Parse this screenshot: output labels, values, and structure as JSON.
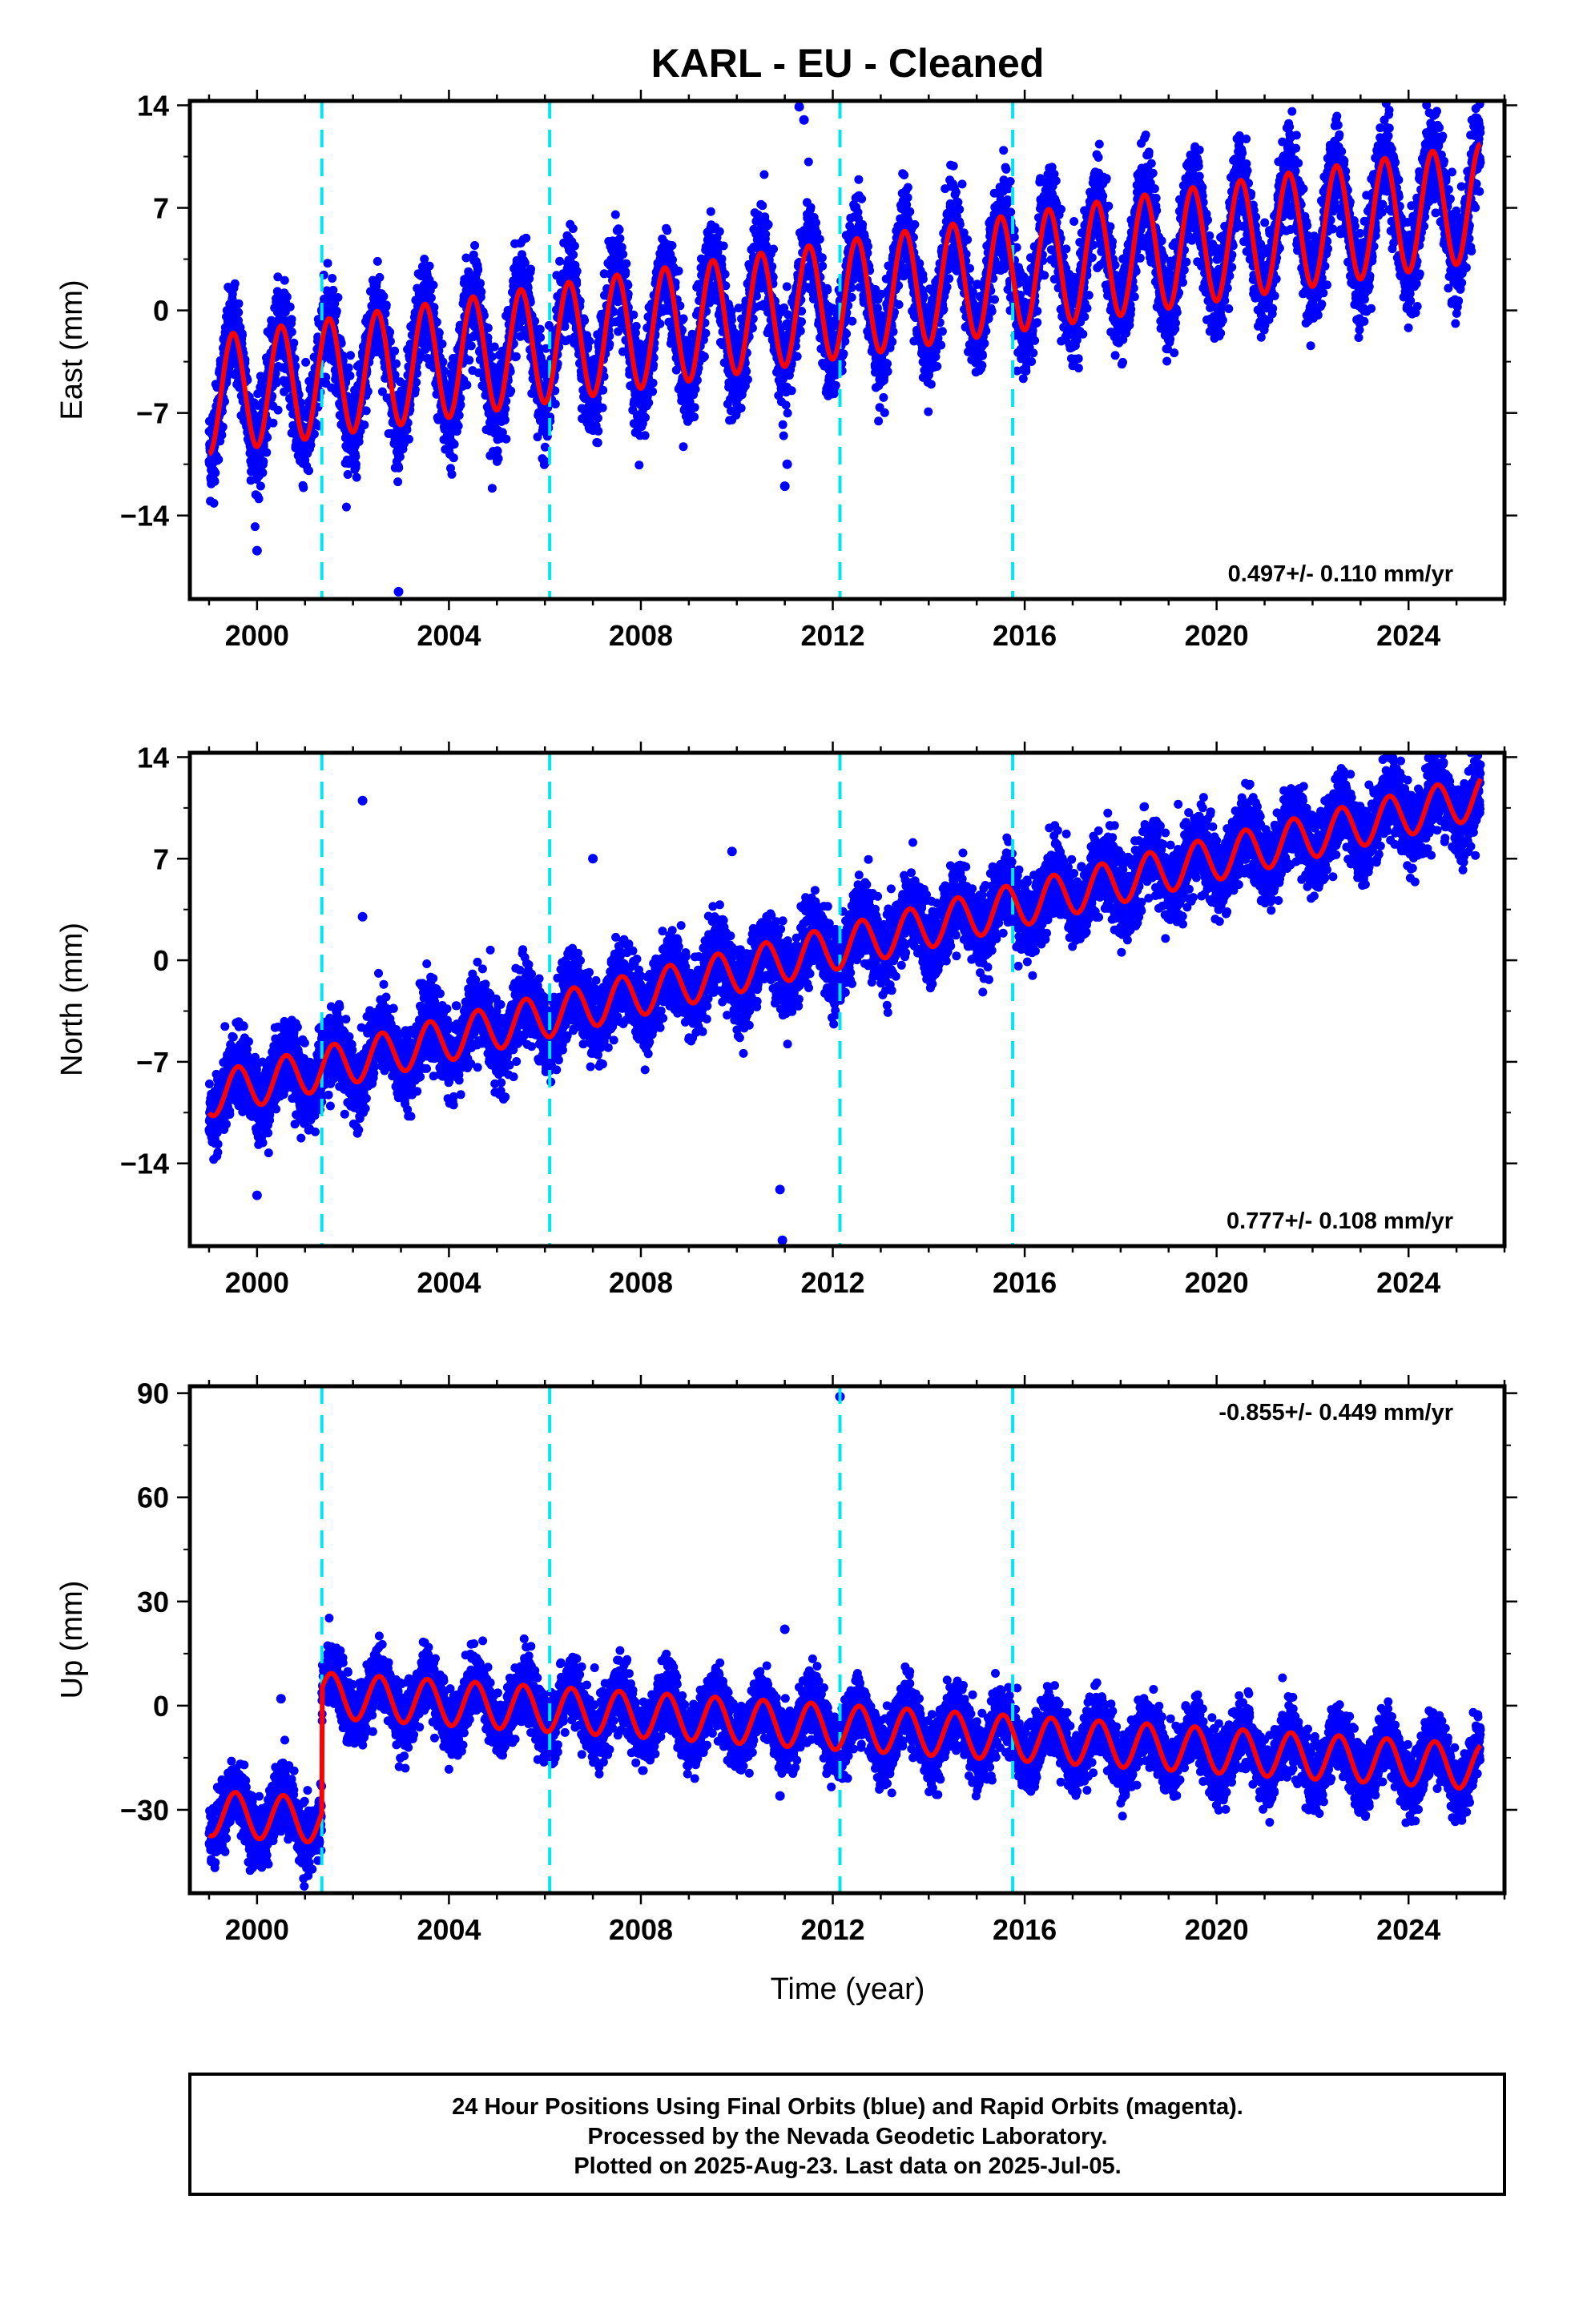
{
  "title": "KARL  - EU - Cleaned",
  "xlabel": "Time (year)",
  "footer": [
    "24 Hour Positions Using Final Orbits (blue) and Rapid Orbits (magenta).",
    "Processed by the Nevada Geodetic Laboratory.",
    "Plotted on 2025-Aug-23. Last data on 2025-Jul-05."
  ],
  "colors": {
    "points": "#0000ff",
    "model": "#ff0000",
    "breaks": "#00e5ee",
    "frame": "#000000"
  },
  "chart_data": [
    {
      "type": "scatter",
      "component": "East",
      "ylabel": "East (mm)",
      "rate_text": "0.497+/- 0.110 mm/yr",
      "xlim": [
        1998.6,
        2026.0
      ],
      "ylim": [
        -19.7,
        14.3
      ],
      "xticks": [
        2000,
        2004,
        2008,
        2012,
        2016,
        2020,
        2024
      ],
      "yticks": [
        14,
        7,
        0,
        -7,
        -14
      ],
      "breaks": [
        2001.35,
        2006.1,
        2012.15,
        2015.75
      ],
      "model": {
        "start": 1999.0,
        "end": 2025.5,
        "offset_at_start": -5.8,
        "rate": 0.497,
        "annual_amplitude": 4.0,
        "annual_peak_fraction": 0.5,
        "scatter_sigma": 1.6,
        "steps": [
          [
            2001.35,
            0
          ],
          [
            2006.1,
            0
          ],
          [
            2012.15,
            0
          ],
          [
            2015.75,
            0
          ]
        ]
      },
      "outliers": [
        [
          2002.95,
          -19.2
        ],
        [
          2000.0,
          -16.4
        ],
        [
          2011.0,
          -12.0
        ],
        [
          2011.05,
          -10.5
        ],
        [
          2005.0,
          -10.0
        ],
        [
          2011.3,
          13.9
        ],
        [
          2011.4,
          13.0
        ]
      ]
    },
    {
      "type": "scatter",
      "component": "North",
      "ylabel": "North (mm)",
      "rate_text": "0.777+/- 0.108 mm/yr",
      "xlim": [
        1998.6,
        2026.0
      ],
      "ylim": [
        -19.7,
        14.3
      ],
      "xticks": [
        2000,
        2004,
        2008,
        2012,
        2016,
        2020,
        2024
      ],
      "yticks": [
        14,
        7,
        0,
        -7,
        -14
      ],
      "breaks": [
        2001.35,
        2006.1,
        2012.15,
        2015.75
      ],
      "model": {
        "start": 1999.0,
        "end": 2025.5,
        "offset_at_start": -9.3,
        "rate": 0.777,
        "annual_amplitude": 1.5,
        "annual_peak_fraction": 0.6,
        "scatter_sigma": 1.3,
        "steps": [
          [
            2001.35,
            0
          ],
          [
            2006.1,
            0
          ],
          [
            2012.15,
            0
          ],
          [
            2015.75,
            0
          ]
        ]
      },
      "outliers": [
        [
          2002.2,
          11.0
        ],
        [
          2002.2,
          3.0
        ],
        [
          2000.0,
          -16.2
        ],
        [
          2010.9,
          -15.8
        ],
        [
          2010.95,
          -19.3
        ],
        [
          2023.7,
          14.5
        ],
        [
          2009.9,
          7.5
        ],
        [
          2007.0,
          7.0
        ]
      ]
    },
    {
      "type": "scatter",
      "component": "Up",
      "ylabel": "Up (mm)",
      "rate_text": "-0.855+/- 0.449 mm/yr",
      "xlim": [
        1998.6,
        2026.0
      ],
      "ylim": [
        -54,
        92
      ],
      "xticks": [
        2000,
        2004,
        2008,
        2012,
        2016,
        2020,
        2024
      ],
      "yticks": [
        90,
        60,
        30,
        0,
        -30
      ],
      "breaks": [
        2001.35,
        2006.1,
        2012.15,
        2015.75
      ],
      "model": {
        "start": 1999.0,
        "end": 2025.5,
        "offset_at_start": -31,
        "rate": -0.855,
        "annual_amplitude": 6.5,
        "annual_peak_fraction": 0.55,
        "scatter_sigma": 4.5,
        "steps": [
          [
            2001.35,
            36
          ],
          [
            2006.1,
            0
          ],
          [
            2012.15,
            0
          ],
          [
            2015.75,
            0
          ]
        ]
      },
      "outliers": [
        [
          2012.15,
          89.0
        ],
        [
          2000.5,
          2.0
        ],
        [
          2010.9,
          -26.0
        ],
        [
          2011.0,
          22.0
        ]
      ]
    }
  ]
}
